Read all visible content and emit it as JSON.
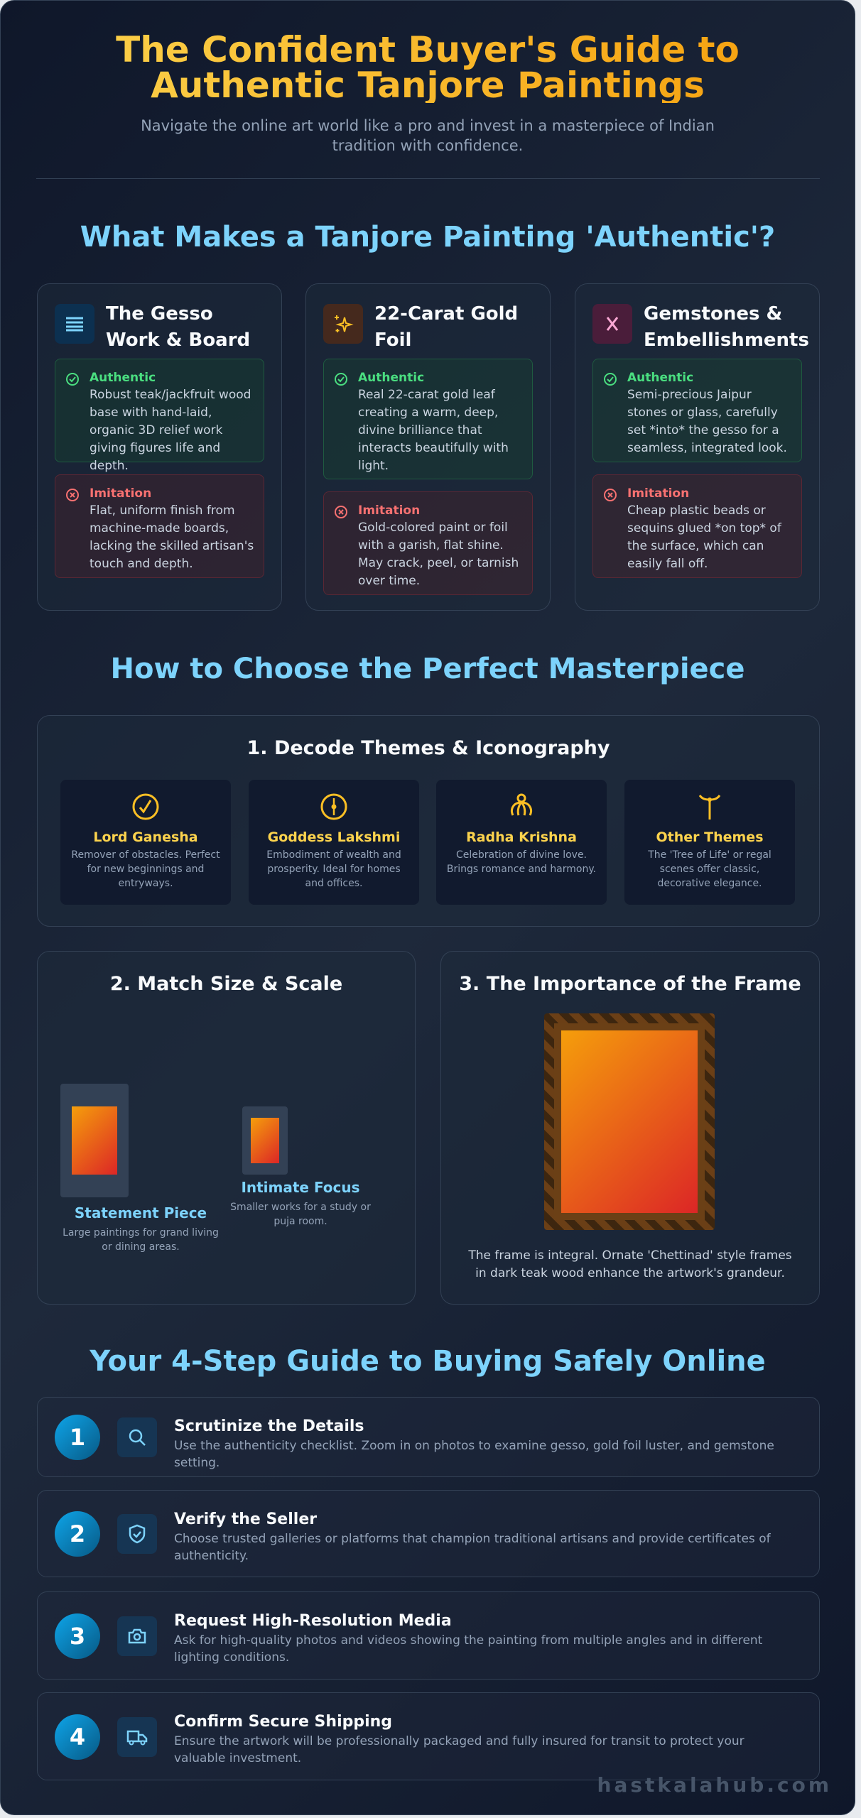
{
  "header": {
    "title": "The Confident Buyer's Guide to Authentic Tanjore Paintings",
    "subtitle": "Navigate the online art world like a pro and invest in a masterpiece of Indian tradition with confidence."
  },
  "authenticity": {
    "heading": "What Makes a Tanjore Painting 'Authentic'?",
    "cards": [
      {
        "title": "The Gesso Work & Board",
        "icon": "layers-icon",
        "auth_label": "Authentic",
        "auth_text": "Robust teak/jackfruit wood base with hand-laid, organic 3D relief work giving figures life and depth.",
        "imit_label": "Imitation",
        "imit_text": "Flat, uniform finish from machine-made boards, lacking the skilled artisan's touch and depth."
      },
      {
        "title": "22-Carat Gold Foil",
        "icon": "sparkles-icon",
        "auth_label": "Authentic",
        "auth_text": "Real 22-carat gold leaf creating a warm, deep, divine brilliance that interacts beautifully with light.",
        "imit_label": "Imitation",
        "imit_text": "Gold-colored paint or foil with a garish, flat shine. May crack, peel, or tarnish over time."
      },
      {
        "title": "Gemstones & Embellishments",
        "icon": "gem-icon",
        "auth_label": "Authentic",
        "auth_text": "Semi-precious Jaipur stones or glass, carefully set *into* the gesso for a seamless, integrated look.",
        "imit_label": "Imitation",
        "imit_text": "Cheap plastic beads or sequins glued *on top* of the surface, which can easily fall off."
      }
    ]
  },
  "choose": {
    "heading": "How to Choose the Perfect Masterpiece",
    "themes": {
      "title": "1. Decode Themes & Iconography",
      "items": [
        {
          "name": "Lord Ganesha",
          "desc": "Remover of obstacles. Perfect for new beginnings and entryways."
        },
        {
          "name": "Goddess Lakshmi",
          "desc": "Embodiment of wealth and prosperity. Ideal for homes and offices."
        },
        {
          "name": "Radha Krishna",
          "desc": "Celebration of divine love. Brings romance and harmony."
        },
        {
          "name": "Other Themes",
          "desc": "The 'Tree of Life' or regal scenes offer classic, decorative elegance."
        }
      ]
    },
    "size": {
      "title": "2. Match Size & Scale",
      "large_label": "Statement Piece",
      "large_desc": "Large paintings for grand living or dining areas.",
      "small_label": "Intimate Focus",
      "small_desc": "Smaller works for a study or puja room."
    },
    "frame": {
      "title": "3. The Importance of the Frame",
      "desc": "The frame is integral. Ornate 'Chettinad' style frames in dark teak wood enhance the artwork's grandeur."
    }
  },
  "steps": {
    "heading": "Your 4-Step Guide to Buying Safely Online",
    "items": [
      {
        "num": "1",
        "icon": "search-icon",
        "title": "Scrutinize the Details",
        "desc": "Use the authenticity checklist. Zoom in on photos to examine gesso, gold foil luster, and gemstone setting."
      },
      {
        "num": "2",
        "icon": "shield-check-icon",
        "title": "Verify the Seller",
        "desc": "Choose trusted galleries or platforms that champion traditional artisans and provide certificates of authenticity."
      },
      {
        "num": "3",
        "icon": "camera-icon",
        "title": "Request High-Resolution Media",
        "desc": "Ask for high-quality photos and videos showing the painting from multiple angles and in different lighting conditions."
      },
      {
        "num": "4",
        "icon": "truck-icon",
        "title": "Confirm Secure Shipping",
        "desc": "Ensure the artwork will be professionally packaged and fully insured for transit to protect your valuable investment."
      }
    ]
  },
  "watermark": "hastkalahub.com",
  "colors": {
    "accent_gold": "#fbbf24",
    "accent_sky": "#7dd3fc",
    "authentic": "#4ade80",
    "imitation": "#f87171"
  }
}
